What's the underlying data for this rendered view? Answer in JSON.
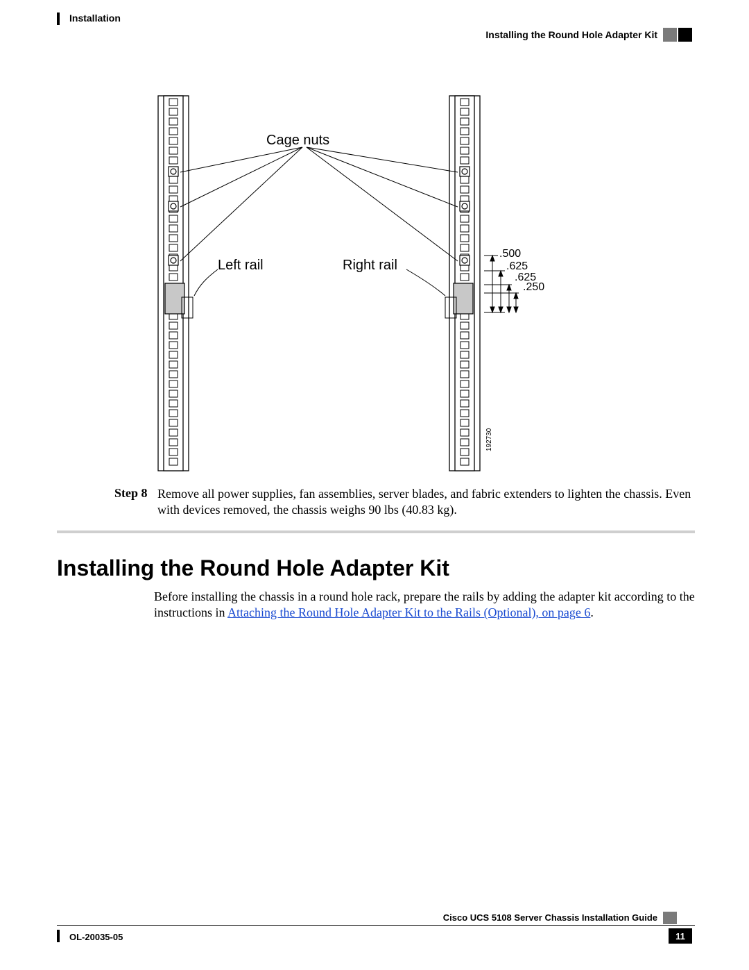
{
  "header": {
    "left": "Installation",
    "right": "Installing the Round Hole Adapter Kit"
  },
  "diagram": {
    "labels": {
      "cage_nuts": "Cage nuts",
      "left_rail": "Left rail",
      "right_rail": "Right rail"
    },
    "dimensions": {
      "d1": ".500",
      "d2": ".625",
      "d3": ".625",
      "d4": ".250"
    },
    "fig_id": "192730",
    "colors": {
      "line": "#000000",
      "fill": "#ffffff",
      "detail_fill": "#c8c8c8"
    },
    "line_width": 1.3
  },
  "step": {
    "label": "Step 8",
    "text": "Remove all power supplies, fan assemblies, server blades, and fabric extenders to lighten the chassis. Even with devices removed, the chassis weighs 90 lbs (40.83 kg)."
  },
  "section": {
    "heading": "Installing the Round Hole Adapter Kit",
    "body_pre": "Before installing the chassis in a round hole rack, prepare the rails by adding the adapter kit according to the instructions in ",
    "link": "Attaching the Round Hole Adapter Kit to the Rails (Optional),  on page 6",
    "body_post": "."
  },
  "footer": {
    "guide": "Cisco UCS 5108 Server Chassis Installation Guide",
    "doc_id": "OL-20035-05",
    "page": "11"
  },
  "style": {
    "heading_fontsize": 32,
    "body_fontsize": 18,
    "header_fontsize": 14,
    "footer_fontsize": 13,
    "link_color": "#1a4bd1",
    "text_color": "#000000",
    "divider_color": "#cfcfcf",
    "background": "#ffffff"
  }
}
